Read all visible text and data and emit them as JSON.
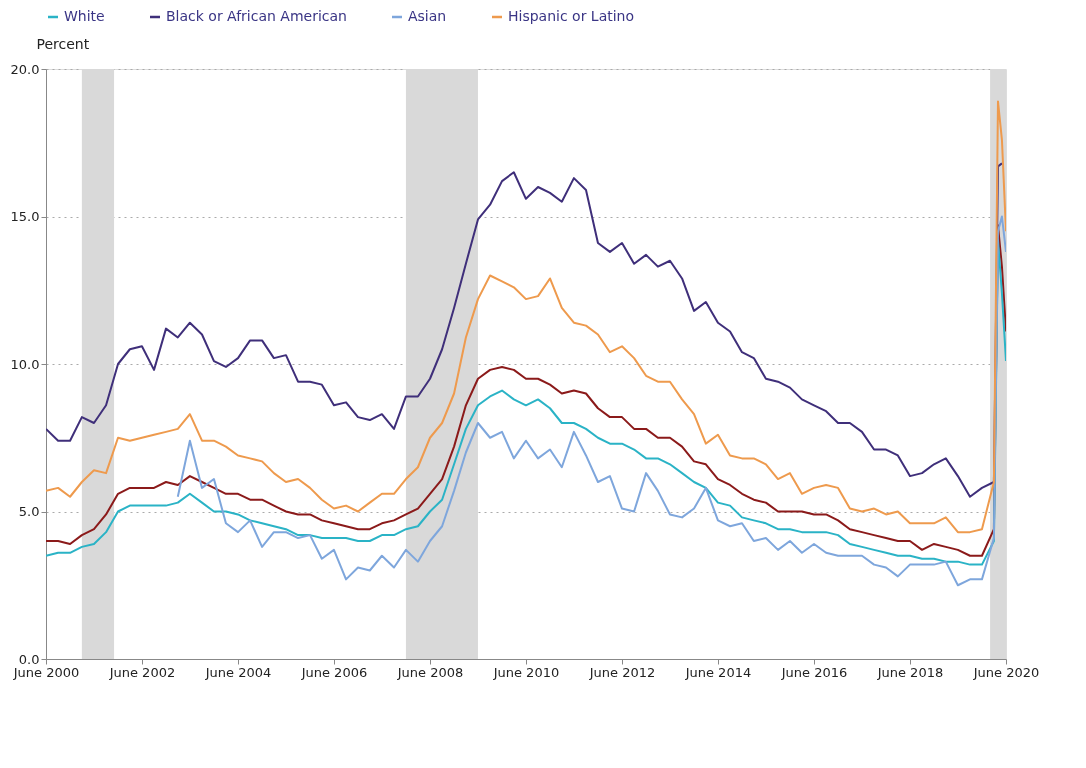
{
  "chart_data": {
    "type": "line",
    "ylabel": "Percent",
    "x": [
      "2000-06",
      "2000-09",
      "2000-12",
      "2001-03",
      "2001-06",
      "2001-09",
      "2001-12",
      "2002-03",
      "2002-06",
      "2002-09",
      "2002-12",
      "2003-03",
      "2003-06",
      "2003-09",
      "2003-12",
      "2004-03",
      "2004-06",
      "2004-09",
      "2004-12",
      "2005-03",
      "2005-06",
      "2005-09",
      "2005-12",
      "2006-03",
      "2006-06",
      "2006-09",
      "2006-12",
      "2007-03",
      "2007-06",
      "2007-09",
      "2007-12",
      "2008-03",
      "2008-06",
      "2008-09",
      "2008-12",
      "2009-03",
      "2009-06",
      "2009-09",
      "2009-12",
      "2010-03",
      "2010-06",
      "2010-09",
      "2010-12",
      "2011-03",
      "2011-06",
      "2011-09",
      "2011-12",
      "2012-03",
      "2012-06",
      "2012-09",
      "2012-12",
      "2013-03",
      "2013-06",
      "2013-09",
      "2013-12",
      "2014-03",
      "2014-06",
      "2014-09",
      "2014-12",
      "2015-03",
      "2015-06",
      "2015-09",
      "2015-12",
      "2016-03",
      "2016-06",
      "2016-09",
      "2016-12",
      "2017-03",
      "2017-06",
      "2017-09",
      "2017-12",
      "2018-03",
      "2018-06",
      "2018-09",
      "2018-12",
      "2019-03",
      "2019-06",
      "2019-09",
      "2019-12",
      "2020-03",
      "2020-04",
      "2020-05",
      "2020-06"
    ],
    "series": [
      {
        "color": "#8b1a1a",
        "values": [
          4.0,
          4.0,
          3.9,
          4.2,
          4.4,
          4.9,
          5.6,
          5.8,
          5.8,
          5.8,
          6.0,
          5.9,
          6.2,
          6.0,
          5.8,
          5.6,
          5.6,
          5.4,
          5.4,
          5.2,
          5.0,
          4.9,
          4.9,
          4.7,
          4.6,
          4.5,
          4.4,
          4.4,
          4.6,
          4.7,
          4.9,
          5.1,
          5.6,
          6.1,
          7.2,
          8.6,
          9.5,
          9.8,
          9.9,
          9.8,
          9.5,
          9.5,
          9.3,
          9.0,
          9.1,
          9.0,
          8.5,
          8.2,
          8.2,
          7.8,
          7.8,
          7.5,
          7.5,
          7.2,
          6.7,
          6.6,
          6.1,
          5.9,
          5.6,
          5.4,
          5.3,
          5.0,
          5.0,
          5.0,
          4.9,
          4.9,
          4.7,
          4.4,
          4.3,
          4.2,
          4.1,
          4.0,
          4.0,
          3.7,
          3.9,
          3.8,
          3.7,
          3.5,
          3.5,
          4.4,
          14.7,
          13.3,
          11.1
        ]
      },
      {
        "name": "White",
        "color": "#2ab3c6",
        "values": [
          3.5,
          3.6,
          3.6,
          3.8,
          3.9,
          4.3,
          5.0,
          5.2,
          5.2,
          5.2,
          5.2,
          5.3,
          5.6,
          5.3,
          5.0,
          5.0,
          4.9,
          4.7,
          4.6,
          4.5,
          4.4,
          4.2,
          4.2,
          4.1,
          4.1,
          4.1,
          4.0,
          4.0,
          4.2,
          4.2,
          4.4,
          4.5,
          5.0,
          5.4,
          6.6,
          7.8,
          8.6,
          8.9,
          9.1,
          8.8,
          8.6,
          8.8,
          8.5,
          8.0,
          8.0,
          7.8,
          7.5,
          7.3,
          7.3,
          7.1,
          6.8,
          6.8,
          6.6,
          6.3,
          6.0,
          5.8,
          5.3,
          5.2,
          4.8,
          4.7,
          4.6,
          4.4,
          4.4,
          4.3,
          4.3,
          4.3,
          4.2,
          3.9,
          3.8,
          3.7,
          3.6,
          3.5,
          3.5,
          3.4,
          3.4,
          3.3,
          3.3,
          3.2,
          3.2,
          4.0,
          14.2,
          12.4,
          10.1
        ]
      },
      {
        "name": "Black or African American",
        "color": "#3f2f7a",
        "values": [
          7.8,
          7.4,
          7.4,
          8.2,
          8.0,
          8.6,
          10.0,
          10.5,
          10.6,
          9.8,
          11.2,
          10.9,
          11.4,
          11.0,
          10.1,
          9.9,
          10.2,
          10.8,
          10.8,
          10.2,
          10.3,
          9.4,
          9.4,
          9.3,
          8.6,
          8.7,
          8.2,
          8.1,
          8.3,
          7.8,
          8.9,
          8.9,
          9.5,
          10.5,
          11.9,
          13.4,
          14.9,
          15.4,
          16.2,
          16.5,
          15.6,
          16.0,
          15.8,
          15.5,
          16.3,
          15.9,
          14.1,
          13.8,
          14.1,
          13.4,
          13.7,
          13.3,
          13.5,
          12.9,
          11.8,
          12.1,
          11.4,
          11.1,
          10.4,
          10.2,
          9.5,
          9.4,
          9.2,
          8.8,
          8.6,
          8.4,
          8.0,
          8.0,
          7.7,
          7.1,
          7.1,
          6.9,
          6.2,
          6.3,
          6.6,
          6.8,
          6.2,
          5.5,
          5.8,
          6.0,
          16.7,
          16.8,
          null
        ]
      },
      {
        "name": "Asian",
        "color": "#7ea6dc",
        "x": [
          "2003-03",
          "2003-06",
          "2003-09",
          "2003-12",
          "2004-03",
          "2004-06",
          "2004-09",
          "2004-12",
          "2005-03",
          "2005-06",
          "2005-09",
          "2005-12",
          "2006-03",
          "2006-06",
          "2006-09",
          "2006-12",
          "2007-03",
          "2007-06",
          "2007-09",
          "2007-12",
          "2008-03",
          "2008-06",
          "2008-09",
          "2008-12",
          "2009-03",
          "2009-06",
          "2009-09",
          "2009-12",
          "2010-03",
          "2010-06",
          "2010-09",
          "2010-12",
          "2011-03",
          "2011-06",
          "2011-09",
          "2011-12",
          "2012-03",
          "2012-06",
          "2012-09",
          "2012-12",
          "2013-03",
          "2013-06",
          "2013-09",
          "2013-12",
          "2014-03",
          "2014-06",
          "2014-09",
          "2014-12",
          "2015-03",
          "2015-06",
          "2015-09",
          "2015-12",
          "2016-03",
          "2016-06",
          "2016-09",
          "2016-12",
          "2017-03",
          "2017-06",
          "2017-09",
          "2017-12",
          "2018-03",
          "2018-06",
          "2018-09",
          "2018-12",
          "2019-03",
          "2019-06",
          "2019-09",
          "2019-12",
          "2020-03",
          "2020-04",
          "2020-05",
          "2020-06"
        ],
        "values": [
          5.5,
          7.4,
          5.8,
          6.1,
          4.6,
          4.3,
          4.7,
          3.8,
          4.3,
          4.3,
          4.1,
          4.2,
          3.4,
          3.7,
          2.7,
          3.1,
          3.0,
          3.5,
          3.1,
          3.7,
          3.3,
          4.0,
          4.5,
          5.7,
          7.0,
          8.0,
          7.5,
          7.7,
          6.8,
          7.4,
          6.8,
          7.1,
          6.5,
          7.7,
          6.9,
          6.0,
          6.2,
          5.1,
          5.0,
          6.3,
          5.7,
          4.9,
          4.8,
          5.1,
          5.8,
          4.7,
          4.5,
          4.6,
          4.0,
          4.1,
          3.7,
          4.0,
          3.6,
          3.9,
          3.6,
          3.5,
          3.5,
          3.5,
          3.2,
          3.1,
          2.8,
          3.2,
          3.2,
          3.2,
          3.3,
          2.5,
          2.7,
          2.7,
          4.1,
          14.5,
          15.0,
          13.8
        ]
      },
      {
        "name": "Hispanic or Latino",
        "color": "#ee9a4d",
        "values": [
          5.7,
          5.8,
          5.5,
          6.0,
          6.4,
          6.3,
          7.5,
          7.4,
          7.5,
          7.6,
          7.7,
          7.8,
          8.3,
          7.4,
          7.4,
          7.2,
          6.9,
          6.8,
          6.7,
          6.3,
          6.0,
          6.1,
          5.8,
          5.4,
          5.1,
          5.2,
          5.0,
          5.3,
          5.6,
          5.6,
          6.1,
          6.5,
          7.5,
          8.0,
          9.0,
          10.9,
          12.2,
          13.0,
          12.8,
          12.6,
          12.2,
          12.3,
          12.9,
          11.9,
          11.4,
          11.3,
          11.0,
          10.4,
          10.6,
          10.2,
          9.6,
          9.4,
          9.4,
          8.8,
          8.3,
          7.3,
          7.6,
          6.9,
          6.8,
          6.8,
          6.6,
          6.1,
          6.3,
          5.6,
          5.8,
          5.9,
          5.8,
          5.1,
          5.0,
          5.1,
          4.9,
          5.0,
          4.6,
          4.6,
          4.6,
          4.8,
          4.3,
          4.3,
          4.4,
          6.0,
          18.9,
          17.6,
          14.5
        ]
      }
    ],
    "xlim": [
      "2000-06",
      "2020-06"
    ],
    "xticks": [
      {
        "value": "2000-06",
        "label": "June 2000"
      },
      {
        "value": "2002-06",
        "label": "June 2002"
      },
      {
        "value": "2004-06",
        "label": "June 2004"
      },
      {
        "value": "2006-06",
        "label": "June 2006"
      },
      {
        "value": "2008-06",
        "label": "June 2008"
      },
      {
        "value": "2010-06",
        "label": "June 2010"
      },
      {
        "value": "2012-06",
        "label": "June 2012"
      },
      {
        "value": "2014-06",
        "label": "June 2014"
      },
      {
        "value": "2016-06",
        "label": "June 2016"
      },
      {
        "value": "2018-06",
        "label": "June 2018"
      },
      {
        "value": "2020-06",
        "label": "June 2020"
      }
    ],
    "ylim": [
      0,
      20
    ],
    "yticks": [
      {
        "value": 0,
        "label": "0.0"
      },
      {
        "value": 5,
        "label": "5.0"
      },
      {
        "value": 10,
        "label": "10.0"
      },
      {
        "value": 15,
        "label": "15.0"
      },
      {
        "value": 20,
        "label": "20.0"
      }
    ],
    "bands": [
      {
        "axis": "x",
        "from": "2001-03",
        "to": "2001-11",
        "color": "#d9d9d9"
      },
      {
        "axis": "x",
        "from": "2007-12",
        "to": "2009-06",
        "color": "#d9d9d9"
      },
      {
        "axis": "x",
        "from": "2020-02",
        "to": "2020-06",
        "color": "#d9d9d9"
      }
    ],
    "grid": "y",
    "legend": "top"
  }
}
